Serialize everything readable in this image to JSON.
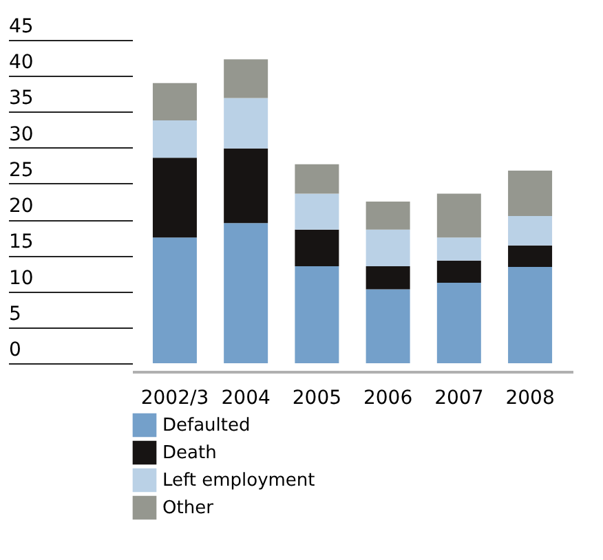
{
  "chart_data": {
    "type": "bar",
    "stacked": true,
    "categories": [
      "2002/3",
      "2004",
      "2005",
      "2006",
      "2007",
      "2008"
    ],
    "series": [
      {
        "name": "Defaulted",
        "color": "#74a0ca",
        "values": [
          17.5,
          19.5,
          13.5,
          10.3,
          11.2,
          13.4
        ]
      },
      {
        "name": "Death",
        "color": "#171413",
        "values": [
          11.1,
          10.4,
          5.1,
          3.2,
          3.1,
          3.0
        ]
      },
      {
        "name": "Left employment",
        "color": "#bad1e6",
        "values": [
          5.2,
          7.0,
          5.0,
          5.1,
          3.2,
          4.1
        ]
      },
      {
        "name": "Other",
        "color": "#95978f",
        "values": [
          5.2,
          5.4,
          4.1,
          3.9,
          6.1,
          6.3
        ]
      }
    ],
    "ylim": [
      0,
      45
    ],
    "yticks": [
      0,
      5,
      10,
      15,
      20,
      25,
      30,
      35,
      40,
      45
    ],
    "grid": false,
    "legend": "bottom left"
  }
}
